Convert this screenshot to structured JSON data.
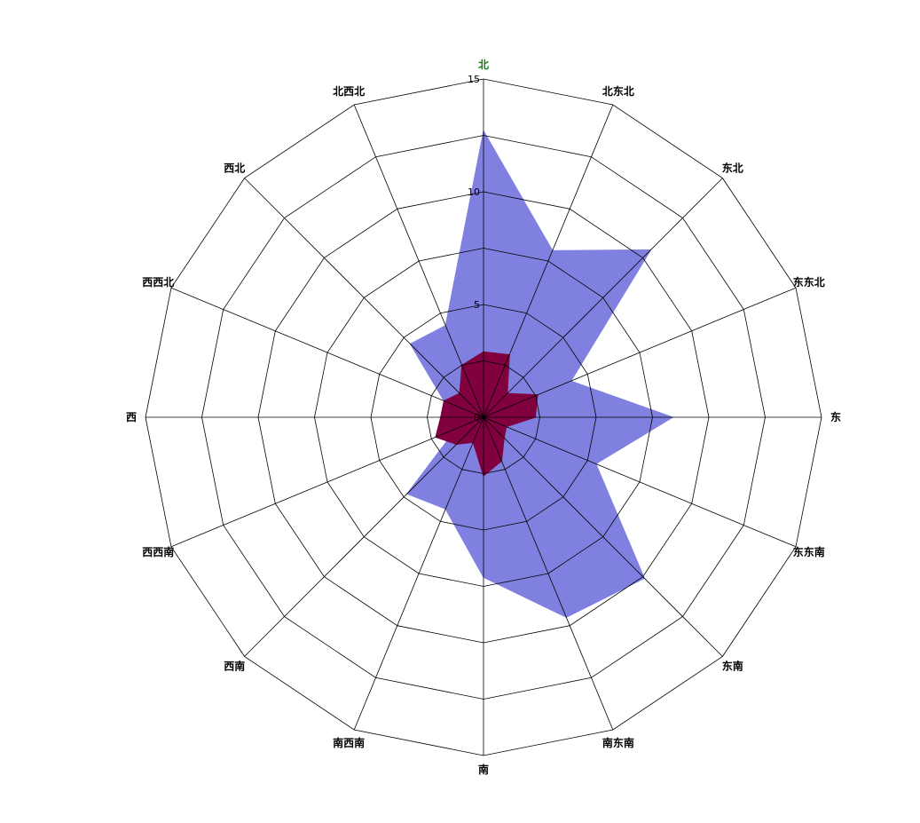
{
  "chart_data": {
    "type": "radar",
    "title": "",
    "directions": [
      "北",
      "北东北",
      "东北",
      "东东北",
      "东",
      "东东南",
      "东南",
      "南东南",
      "南",
      "南西南",
      "西南",
      "西西南",
      "西",
      "西西北",
      "西北",
      "北西北"
    ],
    "rlim": [
      0,
      15
    ],
    "ticks": [
      "0",
      "5",
      "10",
      "15"
    ],
    "tick_values": [
      0,
      5,
      10,
      15
    ],
    "grid": true,
    "series": [
      {
        "values": [
          12.7,
          8.0,
          10.5,
          4.2,
          8.4,
          5.4,
          10.1,
          9.6,
          7.1,
          4.4,
          4.8,
          1.3,
          1.5,
          1.9,
          4.6,
          4.4
        ],
        "color": "#8080e0"
      },
      {
        "values": [
          2.9,
          3.0,
          1.5,
          2.6,
          2.3,
          1.1,
          1.3,
          2.1,
          2.6,
          1.2,
          1.7,
          2.3,
          1.9,
          1.9,
          1.5,
          2.5
        ],
        "color": "#800040"
      }
    ],
    "highlight_color": "#1a7a1a"
  }
}
